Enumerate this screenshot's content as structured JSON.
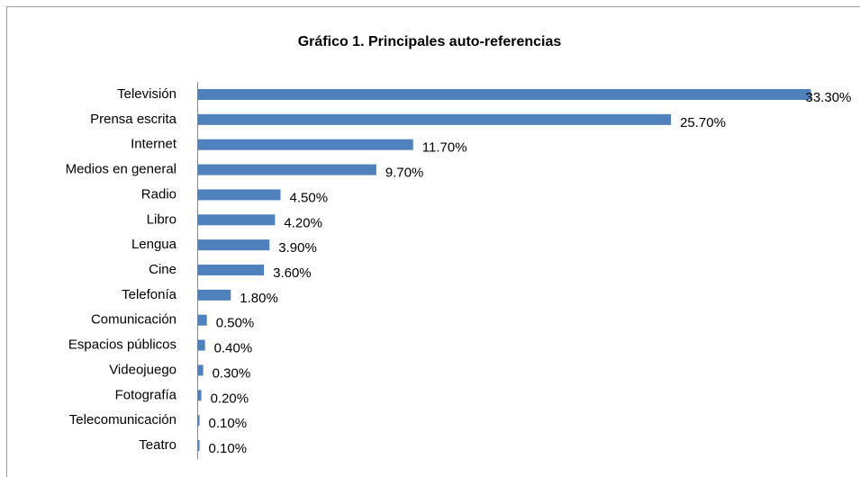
{
  "chart_data": {
    "type": "bar",
    "orientation": "horizontal",
    "title": "Gráfico 1. Principales auto-referencias",
    "categories": [
      "Televisión",
      "Prensa escrita",
      "Internet",
      "Medios en general",
      "Radio",
      "Libro",
      "Lengua",
      "Cine",
      "Telefonía",
      "Comunicación",
      "Espacios públicos",
      "Videojuego",
      "Fotografía",
      "Telecomunicación",
      "Teatro"
    ],
    "values": [
      33.3,
      25.7,
      11.7,
      9.7,
      4.5,
      4.2,
      3.9,
      3.6,
      1.8,
      0.5,
      0.4,
      0.3,
      0.2,
      0.1,
      0.1
    ],
    "value_labels": [
      "33.30%",
      "25.70%",
      "11.70%",
      "9.70%",
      "4.50%",
      "4.20%",
      "3.90%",
      "3.60%",
      "1.80%",
      "0.50%",
      "0.40%",
      "0.30%",
      "0.20%",
      "0.10%",
      "0.10%"
    ],
    "color": "#4f81bd"
  }
}
